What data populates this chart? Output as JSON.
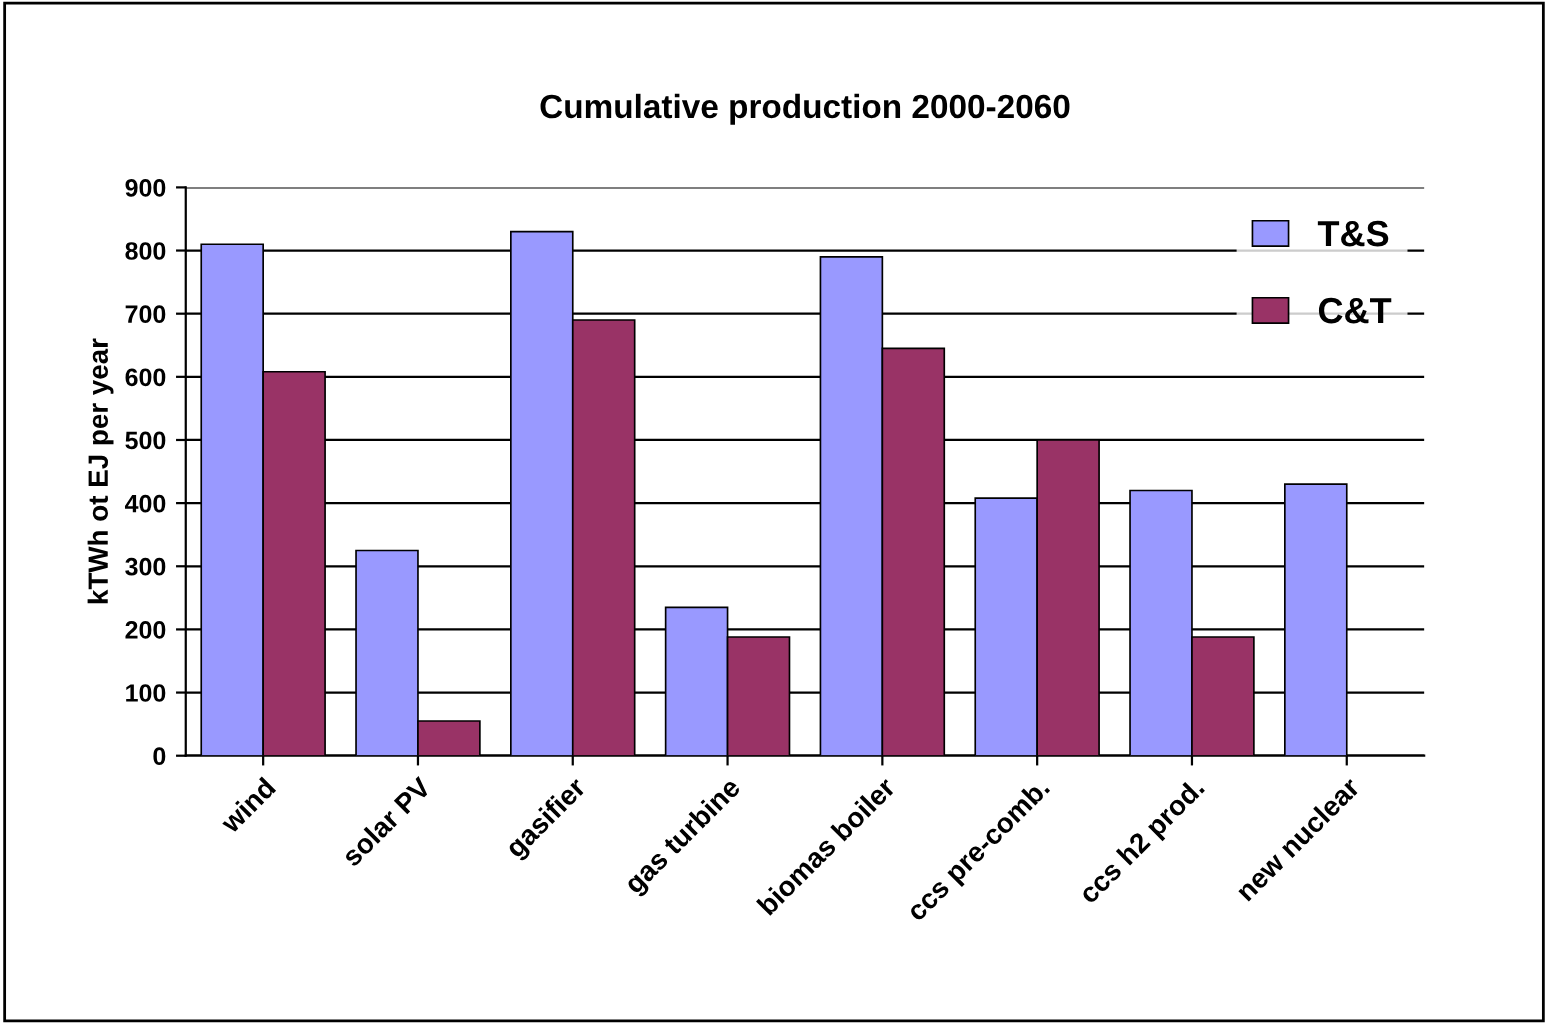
{
  "chart_data": {
    "type": "bar",
    "title": "Cumulative production 2000-2060",
    "ylabel": "kTWh ot EJ per year",
    "categories": [
      "wind",
      "solar PV",
      "gasifier",
      "gas turbine",
      "biomas boiler",
      "ccs pre-comb.",
      "ccs h2 prod.",
      "new nuclear"
    ],
    "series": [
      {
        "name": "T&S",
        "color": "#9999ff",
        "values": [
          810,
          325,
          830,
          235,
          790,
          408,
          420,
          430
        ]
      },
      {
        "name": "C&T",
        "color": "#993366",
        "values": [
          608,
          55,
          690,
          188,
          645,
          500,
          188,
          null
        ]
      }
    ],
    "ylim": [
      0,
      900
    ],
    "yticks": [
      0,
      100,
      200,
      300,
      400,
      500,
      600,
      700,
      800,
      900
    ],
    "grid": "y",
    "legend": "top right"
  }
}
